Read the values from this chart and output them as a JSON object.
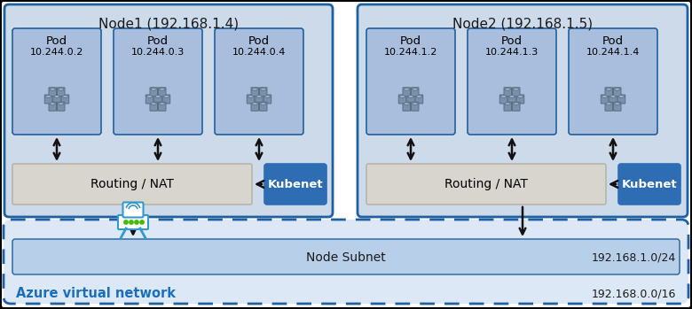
{
  "fig_width": 7.8,
  "fig_height": 3.49,
  "dpi": 100,
  "bg_color": "#000000",
  "bg_inner_color": "#ffffff",
  "node1_label": "Node1 (192.168.1.4)",
  "node2_label": "Node2 (192.168.1.5)",
  "node_box_color": "#ccdaea",
  "node_box_edge": "#2060a0",
  "pod_box_color": "#a8bedc",
  "routing_box_color": "#d8d5ce",
  "routing_edge_color": "#b8b4ac",
  "kubenet_box_color": "#2e6db4",
  "kubenet_text_color": "#ffffff",
  "azure_vnet_color": "#dce8f5",
  "azure_vnet_edge": "#2060a0",
  "azure_vnet_label": "Azure virtual network",
  "azure_vnet_ip": "192.168.0.0/16",
  "node_subnet_label": "Node Subnet",
  "node_subnet_ip": "192.168.1.0/24",
  "node_subnet_color": "#b8cfea",
  "node1_pods": [
    {
      "label": "Pod",
      "ip": "10.244.0.2"
    },
    {
      "label": "Pod",
      "ip": "10.244.0.3"
    },
    {
      "label": "Pod",
      "ip": "10.244.0.4"
    }
  ],
  "node2_pods": [
    {
      "label": "Pod",
      "ip": "10.244.1.2"
    },
    {
      "label": "Pod",
      "ip": "10.244.1.3"
    },
    {
      "label": "Pod",
      "ip": "10.244.1.4"
    }
  ],
  "routing_label": "Routing / NAT",
  "kubenet_label": "Kubenet",
  "label_color_azure": "#1a6fbd",
  "text_color_dark": "#1a1a1a",
  "text_color_node": "#1a1a1a",
  "arrow_color": "#111111",
  "pod_icon_color": "#7a90ab",
  "pod_icon_edge": "#5a6e82",
  "icon_body_color": "#e8eef5",
  "icon_line_color": "#3399cc"
}
